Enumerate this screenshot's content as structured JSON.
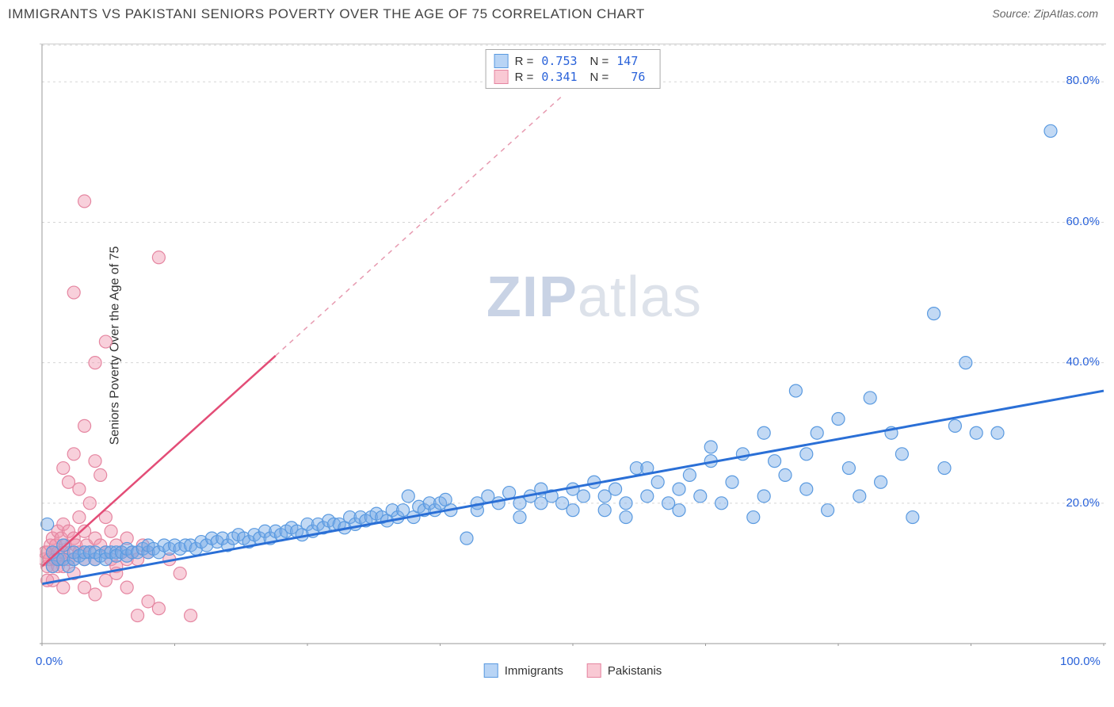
{
  "header": {
    "title": "IMMIGRANTS VS PAKISTANI SENIORS POVERTY OVER THE AGE OF 75 CORRELATION CHART",
    "source_label": "Source:",
    "source_value": "ZipAtlas.com"
  },
  "watermark": {
    "zip": "ZIP",
    "atlas": "atlas"
  },
  "axes": {
    "ylabel": "Seniors Poverty Over the Age of 75",
    "xlim": [
      0,
      100
    ],
    "ylim": [
      0,
      85
    ],
    "x_ticks": [
      0,
      100
    ],
    "x_tick_labels": [
      "0.0%",
      "100.0%"
    ],
    "y_ticks": [
      20,
      40,
      60,
      80
    ],
    "y_tick_labels": [
      "20.0%",
      "40.0%",
      "60.0%",
      "80.0%"
    ],
    "x_minor_ticks": [
      12.5,
      25,
      37.5,
      50,
      62.5,
      75,
      87.5
    ],
    "grid_color": "#d5d5d5",
    "tick_color": "#2962d9",
    "tick_fontsize": 15
  },
  "legend_bottom": {
    "items": [
      {
        "label": "Immigrants",
        "fill": "#b8d4f5",
        "stroke": "#5a9ae0"
      },
      {
        "label": "Pakistanis",
        "fill": "#f9c9d4",
        "stroke": "#e586a1"
      }
    ]
  },
  "stats_legend": {
    "rows": [
      {
        "fill": "#b8d4f5",
        "stroke": "#5a9ae0",
        "R": "0.753",
        "N": "147"
      },
      {
        "fill": "#f9c9d4",
        "stroke": "#e586a1",
        "R": "0.341",
        "N": "  76"
      }
    ]
  },
  "series": {
    "immigrants": {
      "color_fill": "rgba(120,170,230,0.45)",
      "color_stroke": "#5a9ae0",
      "marker_radius": 8,
      "trend": {
        "x1": 0,
        "y1": 8.5,
        "x2": 100,
        "y2": 36,
        "color": "#2a6fd6",
        "width": 3
      },
      "points": [
        [
          0.5,
          17
        ],
        [
          1,
          11
        ],
        [
          1,
          13
        ],
        [
          1.5,
          12
        ],
        [
          2,
          12
        ],
        [
          2,
          14
        ],
        [
          2.5,
          11
        ],
        [
          3,
          12
        ],
        [
          3,
          13
        ],
        [
          3.5,
          12.5
        ],
        [
          4,
          12
        ],
        [
          4,
          13
        ],
        [
          4.5,
          13
        ],
        [
          5,
          12
        ],
        [
          5,
          13
        ],
        [
          5.5,
          12.5
        ],
        [
          6,
          13
        ],
        [
          6,
          12
        ],
        [
          6.5,
          13
        ],
        [
          7,
          13
        ],
        [
          7,
          12.5
        ],
        [
          7.5,
          13
        ],
        [
          8,
          12.5
        ],
        [
          8,
          13.5
        ],
        [
          8.5,
          13
        ],
        [
          9,
          13
        ],
        [
          9.5,
          13.5
        ],
        [
          10,
          13
        ],
        [
          10,
          14
        ],
        [
          10.5,
          13.5
        ],
        [
          11,
          13
        ],
        [
          11.5,
          14
        ],
        [
          12,
          13.5
        ],
        [
          12.5,
          14
        ],
        [
          13,
          13.5
        ],
        [
          13.5,
          14
        ],
        [
          14,
          14
        ],
        [
          14.5,
          13.5
        ],
        [
          15,
          14.5
        ],
        [
          15.5,
          14
        ],
        [
          16,
          15
        ],
        [
          16.5,
          14.5
        ],
        [
          17,
          15
        ],
        [
          17.5,
          14
        ],
        [
          18,
          15
        ],
        [
          18.5,
          15.5
        ],
        [
          19,
          15
        ],
        [
          19.5,
          14.5
        ],
        [
          20,
          15.5
        ],
        [
          20.5,
          15
        ],
        [
          21,
          16
        ],
        [
          21.5,
          15
        ],
        [
          22,
          16
        ],
        [
          22.5,
          15.5
        ],
        [
          23,
          16
        ],
        [
          23.5,
          16.5
        ],
        [
          24,
          16
        ],
        [
          24.5,
          15.5
        ],
        [
          25,
          17
        ],
        [
          25.5,
          16
        ],
        [
          26,
          17
        ],
        [
          26.5,
          16.5
        ],
        [
          27,
          17.5
        ],
        [
          27.5,
          17
        ],
        [
          28,
          17
        ],
        [
          28.5,
          16.5
        ],
        [
          29,
          18
        ],
        [
          29.5,
          17
        ],
        [
          30,
          18
        ],
        [
          30.5,
          17.5
        ],
        [
          31,
          18
        ],
        [
          31.5,
          18.5
        ],
        [
          32,
          18
        ],
        [
          32.5,
          17.5
        ],
        [
          33,
          19
        ],
        [
          33.5,
          18
        ],
        [
          34,
          19
        ],
        [
          34.5,
          21
        ],
        [
          35,
          18
        ],
        [
          35.5,
          19.5
        ],
        [
          36,
          19
        ],
        [
          36.5,
          20
        ],
        [
          37,
          19
        ],
        [
          37.5,
          20
        ],
        [
          38,
          20.5
        ],
        [
          38.5,
          19
        ],
        [
          40,
          15
        ],
        [
          41,
          20
        ],
        [
          42,
          21
        ],
        [
          43,
          20
        ],
        [
          44,
          21.5
        ],
        [
          45,
          20
        ],
        [
          46,
          21
        ],
        [
          47,
          22
        ],
        [
          48,
          21
        ],
        [
          49,
          20
        ],
        [
          50,
          22
        ],
        [
          51,
          21
        ],
        [
          52,
          23
        ],
        [
          53,
          19
        ],
        [
          54,
          22
        ],
        [
          55,
          20
        ],
        [
          56,
          25
        ],
        [
          57,
          21
        ],
        [
          58,
          23
        ],
        [
          59,
          20
        ],
        [
          60,
          19
        ],
        [
          61,
          24
        ],
        [
          62,
          21
        ],
        [
          63,
          26
        ],
        [
          64,
          20
        ],
        [
          65,
          23
        ],
        [
          66,
          27
        ],
        [
          67,
          18
        ],
        [
          68,
          21
        ],
        [
          69,
          26
        ],
        [
          70,
          24
        ],
        [
          71,
          36
        ],
        [
          72,
          22
        ],
        [
          73,
          30
        ],
        [
          74,
          19
        ],
        [
          75,
          32
        ],
        [
          76,
          25
        ],
        [
          77,
          21
        ],
        [
          78,
          35
        ],
        [
          79,
          23
        ],
        [
          80,
          30
        ],
        [
          81,
          27
        ],
        [
          82,
          18
        ],
        [
          84,
          47
        ],
        [
          85,
          25
        ],
        [
          86,
          31
        ],
        [
          87,
          40
        ],
        [
          88,
          30
        ],
        [
          90,
          30
        ],
        [
          95,
          73
        ],
        [
          55,
          18
        ],
        [
          60,
          22
        ],
        [
          50,
          19
        ],
        [
          45,
          18
        ],
        [
          41,
          19
        ],
        [
          47,
          20
        ],
        [
          57,
          25
        ],
        [
          53,
          21
        ],
        [
          63,
          28
        ],
        [
          68,
          30
        ],
        [
          72,
          27
        ]
      ]
    },
    "pakistanis": {
      "color_fill": "rgba(240,150,175,0.45)",
      "color_stroke": "#e586a1",
      "marker_radius": 8,
      "trend_solid": {
        "x1": 0,
        "y1": 11,
        "x2": 22,
        "y2": 41,
        "color": "#e34d77",
        "width": 2.5
      },
      "trend_dashed": {
        "x1": 22,
        "y1": 41,
        "x2": 49,
        "y2": 78,
        "color": "#e79ab0",
        "width": 1.5,
        "dash": "6,6"
      },
      "points": [
        [
          0.2,
          12
        ],
        [
          0.3,
          13
        ],
        [
          0.5,
          11
        ],
        [
          0.5,
          13
        ],
        [
          0.7,
          12
        ],
        [
          0.8,
          14
        ],
        [
          1,
          11
        ],
        [
          1,
          13
        ],
        [
          1,
          15
        ],
        [
          1.2,
          12
        ],
        [
          1.3,
          14
        ],
        [
          1.5,
          11
        ],
        [
          1.5,
          13
        ],
        [
          1.5,
          16
        ],
        [
          1.7,
          12
        ],
        [
          1.8,
          15
        ],
        [
          2,
          11
        ],
        [
          2,
          13
        ],
        [
          2,
          17
        ],
        [
          2,
          25
        ],
        [
          2.2,
          14
        ],
        [
          2.5,
          12
        ],
        [
          2.5,
          16
        ],
        [
          2.5,
          23
        ],
        [
          2.7,
          13
        ],
        [
          3,
          12
        ],
        [
          3,
          15
        ],
        [
          3,
          27
        ],
        [
          3.2,
          14
        ],
        [
          3.5,
          13
        ],
        [
          3.5,
          18
        ],
        [
          3.5,
          22
        ],
        [
          4,
          12
        ],
        [
          4,
          16
        ],
        [
          4,
          31
        ],
        [
          4.2,
          14
        ],
        [
          4.5,
          13
        ],
        [
          4.5,
          20
        ],
        [
          5,
          12
        ],
        [
          5,
          15
        ],
        [
          5,
          26
        ],
        [
          5.5,
          14
        ],
        [
          5.5,
          24
        ],
        [
          6,
          13
        ],
        [
          6,
          18
        ],
        [
          6.5,
          12
        ],
        [
          6.5,
          16
        ],
        [
          7,
          14
        ],
        [
          7,
          11
        ],
        [
          7.5,
          13
        ],
        [
          8,
          12
        ],
        [
          8,
          15
        ],
        [
          8.5,
          13
        ],
        [
          9,
          12
        ],
        [
          9,
          4
        ],
        [
          9.5,
          14
        ],
        [
          10,
          13
        ],
        [
          10,
          6
        ],
        [
          11,
          5
        ],
        [
          12,
          12
        ],
        [
          13,
          10
        ],
        [
          14,
          4
        ],
        [
          3,
          50
        ],
        [
          4,
          63
        ],
        [
          5,
          40
        ],
        [
          6,
          43
        ],
        [
          11,
          55
        ],
        [
          3,
          10
        ],
        [
          4,
          8
        ],
        [
          5,
          7
        ],
        [
          6,
          9
        ],
        [
          7,
          10
        ],
        [
          8,
          8
        ],
        [
          2,
          8
        ],
        [
          1,
          9
        ],
        [
          0.5,
          9
        ]
      ]
    }
  }
}
